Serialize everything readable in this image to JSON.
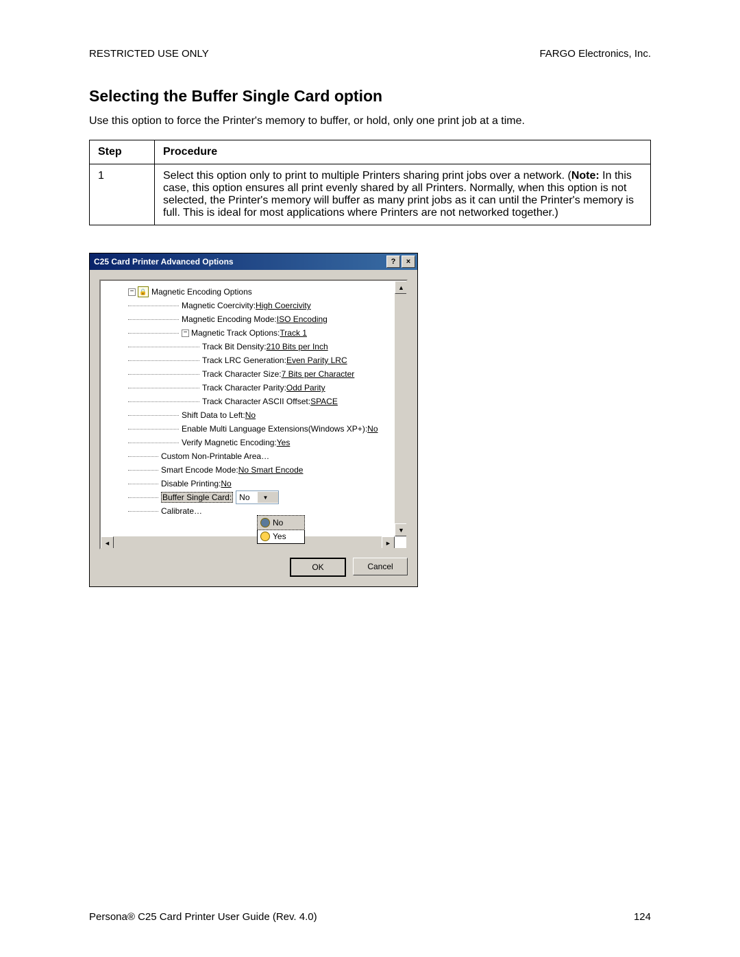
{
  "header": {
    "left": "RESTRICTED USE ONLY",
    "right": "FARGO Electronics, Inc."
  },
  "section_title": "Selecting the Buffer Single Card option",
  "intro": "Use this option to force the Printer's memory to buffer, or hold, only one print job at a time.",
  "table": {
    "head_step": "Step",
    "head_proc": "Procedure",
    "step_num": "1",
    "proc_pre": "Select this option only to print to multiple Printers sharing print jobs over a network.  (",
    "proc_note_label": "Note:",
    "proc_post": "  In this case, this option ensures all print evenly shared by all Printers.  Normally, when this option is not selected, the Printer's memory will buffer as many print jobs as it can until the Printer's memory is full.  This is ideal for most applications where Printers are not networked together.)"
  },
  "dialog": {
    "title": "C25 Card Printer Advanced Options",
    "help_glyph": "?",
    "close_glyph": "×",
    "tree": {
      "root": "Magnetic Encoding Options",
      "items": [
        {
          "label": "Magnetic Coercivity:",
          "value": "High Coercivity",
          "indent": 110
        },
        {
          "label": "Magnetic Encoding Mode:",
          "value": "ISO Encoding",
          "indent": 110
        },
        {
          "label": "Magnetic Track Options:",
          "value": "Track 1",
          "indent": 110,
          "expandable": true
        },
        {
          "label": "Track Bit Density:",
          "value": "210 Bits per Inch",
          "indent": 140
        },
        {
          "label": "Track LRC Generation:",
          "value": "Even Parity LRC",
          "indent": 140
        },
        {
          "label": "Track Character Size:",
          "value": "7 Bits per Character",
          "indent": 140
        },
        {
          "label": "Track Character Parity:",
          "value": "Odd Parity",
          "indent": 140
        },
        {
          "label": "Track Character ASCII Offset:",
          "value": "SPACE",
          "indent": 140
        },
        {
          "label": "Shift Data to Left:",
          "value": "No",
          "indent": 110
        },
        {
          "label": "Enable Multi Language Extensions(Windows XP+):",
          "value": "No",
          "indent": 110
        },
        {
          "label": "Verify Magnetic Encoding:",
          "value": "Yes",
          "indent": 110
        },
        {
          "label": "Custom Non-Printable Area…",
          "value": "",
          "indent": 80
        },
        {
          "label": "Smart Encode Mode:",
          "value": "No Smart Encode",
          "indent": 80
        },
        {
          "label": "Disable Printing:",
          "value": "No",
          "indent": 80
        },
        {
          "label": "Buffer Single Card:",
          "value": "",
          "indent": 80,
          "combo": "No",
          "selected": true
        },
        {
          "label": "Calibrate…",
          "value": "",
          "indent": 80
        }
      ],
      "dropdown": {
        "opt1": "No",
        "opt2": "Yes"
      }
    },
    "buttons": {
      "ok": "OK",
      "cancel": "Cancel"
    }
  },
  "footer": {
    "left": "Persona® C25 Card Printer User Guide (Rev. 4.0)",
    "page": "124"
  }
}
